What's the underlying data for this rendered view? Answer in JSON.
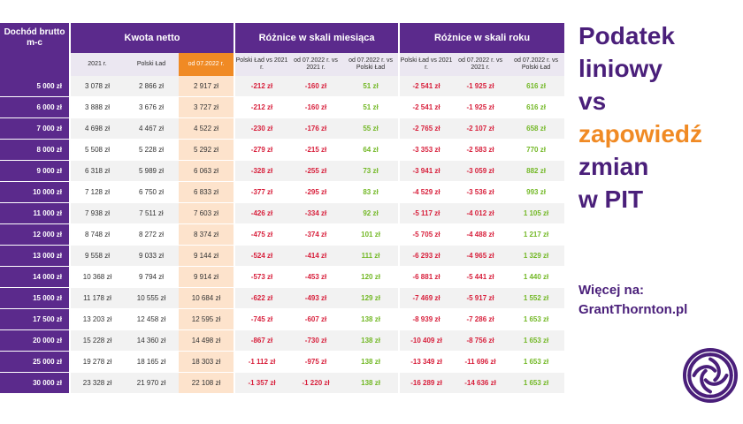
{
  "table": {
    "header_income": "Dochód brutto m-c",
    "group_netto": "Kwota netto",
    "group_month": "Różnice w skali miesiąca",
    "group_year": "Różnice w skali roku",
    "sub_headers": [
      "2021 r.",
      "Polski Ład",
      "od 07.2022 r.",
      "Polski Ład vs 2021 r.",
      "od 07.2022 r. vs 2021 r.",
      "od 07.2022 r. vs Polski Ład",
      "Polski Ład vs 2021 r.",
      "od 07.2022 r. vs 2021 r.",
      "od 07.2022 r. vs Polski Ład"
    ],
    "rows": [
      [
        "5 000 zł",
        "3 078 zł",
        "2 866 zł",
        "2 917 zł",
        "-212 zł",
        "-160 zł",
        "51 zł",
        "-2 541 zł",
        "-1 925 zł",
        "616 zł"
      ],
      [
        "6 000 zł",
        "3 888 zł",
        "3 676 zł",
        "3 727 zł",
        "-212 zł",
        "-160 zł",
        "51 zł",
        "-2 541 zł",
        "-1 925 zł",
        "616 zł"
      ],
      [
        "7 000 zł",
        "4 698 zł",
        "4 467 zł",
        "4 522 zł",
        "-230 zł",
        "-176 zł",
        "55 zł",
        "-2 765 zł",
        "-2 107 zł",
        "658 zł"
      ],
      [
        "8 000 zł",
        "5 508 zł",
        "5 228 zł",
        "5 292 zł",
        "-279 zł",
        "-215 zł",
        "64 zł",
        "-3 353 zł",
        "-2 583 zł",
        "770 zł"
      ],
      [
        "9 000 zł",
        "6 318 zł",
        "5 989 zł",
        "6 063 zł",
        "-328 zł",
        "-255 zł",
        "73 zł",
        "-3 941 zł",
        "-3 059 zł",
        "882 zł"
      ],
      [
        "10 000 zł",
        "7 128 zł",
        "6 750 zł",
        "6 833 zł",
        "-377 zł",
        "-295 zł",
        "83 zł",
        "-4 529 zł",
        "-3 536 zł",
        "993 zł"
      ],
      [
        "11 000 zł",
        "7 938 zł",
        "7 511 zł",
        "7 603 zł",
        "-426 zł",
        "-334 zł",
        "92 zł",
        "-5 117 zł",
        "-4 012 zł",
        "1 105 zł"
      ],
      [
        "12 000 zł",
        "8 748 zł",
        "8 272 zł",
        "8 374 zł",
        "-475 zł",
        "-374 zł",
        "101 zł",
        "-5 705 zł",
        "-4 488 zł",
        "1 217 zł"
      ],
      [
        "13 000 zł",
        "9 558 zł",
        "9 033 zł",
        "9 144 zł",
        "-524 zł",
        "-414 zł",
        "111 zł",
        "-6 293 zł",
        "-4 965 zł",
        "1 329 zł"
      ],
      [
        "14 000 zł",
        "10 368 zł",
        "9 794 zł",
        "9 914 zł",
        "-573 zł",
        "-453 zł",
        "120 zł",
        "-6 881 zł",
        "-5 441 zł",
        "1 440 zł"
      ],
      [
        "15 000 zł",
        "11 178 zł",
        "10 555 zł",
        "10 684 zł",
        "-622 zł",
        "-493 zł",
        "129 zł",
        "-7 469 zł",
        "-5 917 zł",
        "1 552 zł"
      ],
      [
        "17 500 zł",
        "13 203 zł",
        "12 458 zł",
        "12 595 zł",
        "-745 zł",
        "-607 zł",
        "138 zł",
        "-8 939 zł",
        "-7 286 zł",
        "1 653 zł"
      ],
      [
        "20 000 zł",
        "15 228 zł",
        "14 360 zł",
        "14 498 zł",
        "-867 zł",
        "-730 zł",
        "138 zł",
        "-10 409 zł",
        "-8 756 zł",
        "1 653 zł"
      ],
      [
        "25 000 zł",
        "19 278 zł",
        "18 165 zł",
        "18 303 zł",
        "-1 112 zł",
        "-975 zł",
        "138 zł",
        "-13 349 zł",
        "-11 696 zł",
        "1 653 zł"
      ],
      [
        "30 000 zł",
        "23 328 zł",
        "21 970 zł",
        "22 108 zł",
        "-1 357 zł",
        "-1 220 zł",
        "138 zł",
        "-16 289 zł",
        "-14 636 zł",
        "1 653 zł"
      ]
    ]
  },
  "side": {
    "lines": [
      "Podatek",
      "liniowy",
      "vs",
      "zapowiedź",
      "zmian",
      "w PIT"
    ],
    "line_colors": [
      "purple",
      "purple",
      "purple",
      "orange",
      "purple",
      "purple"
    ],
    "more_label": "Więcej na:",
    "more_link": "GrantThornton.pl"
  },
  "logo": {
    "icon": "grant-thornton-swirl-icon",
    "color": "#4a1f7a"
  },
  "colors": {
    "purple": "#5b2a8c",
    "orange": "#f08a24",
    "negative": "#d8203c",
    "positive": "#73b826"
  }
}
